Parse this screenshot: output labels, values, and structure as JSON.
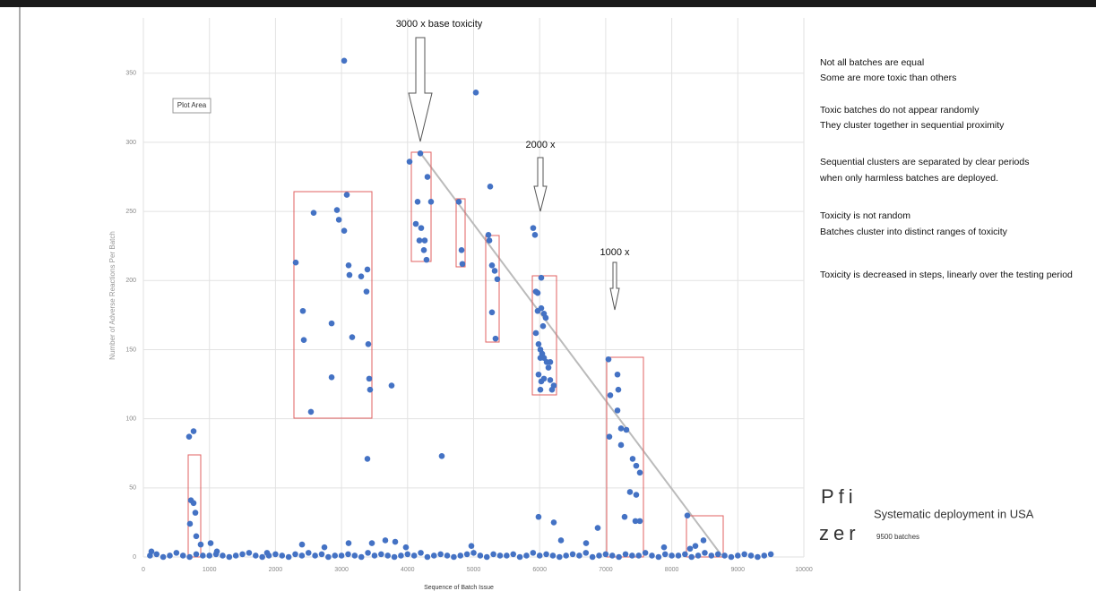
{
  "chart_data": {
    "type": "scatter",
    "x_label": "Sequence of Batch Issue",
    "y_label": "Number of Adverse Reactions Per Batch",
    "plot_area_label": "Plot Area",
    "annotations": [
      "3000 x base toxicity",
      "2000 x",
      "1000 x"
    ],
    "xlim": [
      0,
      10000
    ],
    "xticks": [
      0,
      1000,
      2000,
      3000,
      4000,
      5000,
      6000,
      7000,
      8000,
      9000,
      10000
    ],
    "ylim": [
      0,
      390
    ],
    "yticks": [
      0,
      50,
      100,
      150,
      200,
      250,
      300,
      350
    ],
    "grid": true,
    "series": [
      {
        "color": "#4472c4",
        "x": [
          692,
          760,
          720,
          760,
          787,
          705,
          800,
          868,
          1018,
          2307,
          2415,
          2429,
          2578,
          2537,
          2850,
          2850,
          2931,
          2960,
          3040,
          3080,
          3107,
          3120,
          3161,
          3297,
          3392,
          3378,
          3405,
          3432,
          3419,
          3392,
          3040,
          3758,
          4030,
          4193,
          4152,
          4301,
          4355,
          4125,
          4206,
          4260,
          4179,
          4247,
          4287,
          4776,
          4817,
          4830,
          5034,
          5251,
          5224,
          5238,
          5278,
          5319,
          5359,
          5278,
          5332,
          4518,
          5902,
          5929,
          5943,
          5970,
          6024,
          6024,
          5970,
          6065,
          6051,
          6092,
          5943,
          5983,
          6011,
          6038,
          6065,
          6106,
          6011,
          6133,
          6160,
          5983,
          6065,
          6160,
          6214,
          6187,
          6011,
          6024,
          5983,
          6214,
          6323,
          7042,
          7069,
          7178,
          7191,
          7178,
          7055,
          7232,
          7313,
          7232,
          7408,
          7462,
          7517,
          7367,
          7462,
          7449,
          7517,
          7286,
          6879,
          8236,
          8277,
          8358,
          8480,
          122,
          1113,
          1872,
          2402,
          2741,
          3107,
          3460,
          3663,
          3813,
          3975,
          4966,
          6703,
          7883
        ],
        "values": [
          87,
          91,
          41,
          39,
          32,
          24,
          15,
          9,
          10,
          213,
          178,
          157,
          249,
          105,
          169,
          130,
          251,
          244,
          236,
          262,
          211,
          204,
          159,
          203,
          208,
          192,
          154,
          121,
          129,
          71,
          359,
          124,
          286,
          292,
          257,
          275,
          257,
          241,
          238,
          229,
          229,
          222,
          215,
          257,
          222,
          212,
          336,
          268,
          233,
          229,
          211,
          207,
          201,
          177,
          158,
          73,
          238,
          233,
          192,
          191,
          202,
          180,
          178,
          176,
          167,
          173,
          162,
          154,
          150,
          147,
          144,
          141,
          144,
          137,
          141,
          132,
          129,
          128,
          124,
          121,
          121,
          127,
          29,
          25,
          12,
          143,
          117,
          132,
          121,
          106,
          87,
          93,
          92,
          81,
          71,
          66,
          61,
          47,
          45,
          26,
          26,
          29,
          21,
          30,
          6,
          8,
          12,
          4,
          4,
          3,
          9,
          7,
          10,
          10,
          12,
          11,
          7,
          8,
          10,
          7
        ]
      },
      {
        "color": "#4472c4",
        "x": [
          100,
          200,
          300,
          400,
          500,
          600,
          700,
          800,
          900,
          1000,
          1100,
          1200,
          1300,
          1400,
          1500,
          1600,
          1700,
          1800,
          1900,
          2000,
          2100,
          2200,
          2300,
          2400,
          2500,
          2600,
          2700,
          2800,
          2900,
          3000,
          3100,
          3200,
          3300,
          3400,
          3500,
          3600,
          3700,
          3800,
          3900,
          4000,
          4100,
          4200,
          4300,
          4400,
          4500,
          4600,
          4700,
          4800,
          4900,
          5000,
          5100,
          5200,
          5300,
          5400,
          5500,
          5600,
          5700,
          5800,
          5900,
          6000,
          6100,
          6200,
          6300,
          6400,
          6500,
          6600,
          6700,
          6800,
          6900,
          7000,
          7100,
          7200,
          7300,
          7400,
          7500,
          7600,
          7700,
          7800,
          7900,
          8000,
          8100,
          8200,
          8300,
          8400,
          8500,
          8600,
          8700,
          8800,
          8900,
          9000,
          9100,
          9200,
          9300,
          9400,
          9500
        ],
        "values": [
          1,
          2,
          0,
          1,
          3,
          1,
          0,
          2,
          1,
          1,
          2,
          1,
          0,
          1,
          2,
          3,
          1,
          0,
          1,
          2,
          1,
          0,
          2,
          1,
          3,
          1,
          2,
          0,
          1,
          1,
          2,
          1,
          0,
          3,
          1,
          2,
          1,
          0,
          1,
          2,
          1,
          3,
          0,
          1,
          2,
          1,
          0,
          1,
          2,
          3,
          1,
          0,
          2,
          1,
          1,
          2,
          0,
          1,
          3,
          1,
          2,
          1,
          0,
          1,
          2,
          1,
          3,
          0,
          1,
          2,
          1,
          0,
          2,
          1,
          1,
          3,
          1,
          0,
          2,
          1,
          1,
          2,
          0,
          1,
          3,
          1,
          2,
          1,
          0,
          1,
          2,
          1,
          0,
          1,
          2
        ]
      }
    ]
  },
  "text_panel": {
    "notes": [
      "Not all batches are equal",
      "Some are more toxic than others",
      "Toxic batches do not appear randomly",
      "They cluster together in sequential proximity",
      "Sequential clusters are separated by clear periods",
      "when only harmless batches are deployed.",
      "Toxicity is not random",
      "Batches cluster into distinct ranges of toxicity",
      "Toxicity is decreased in steps, linearly over the testing period"
    ],
    "logo_top": "Pfi",
    "logo_bottom": "zer",
    "deployment": "Systematic deployment in USA",
    "batches": "9500 batches"
  }
}
